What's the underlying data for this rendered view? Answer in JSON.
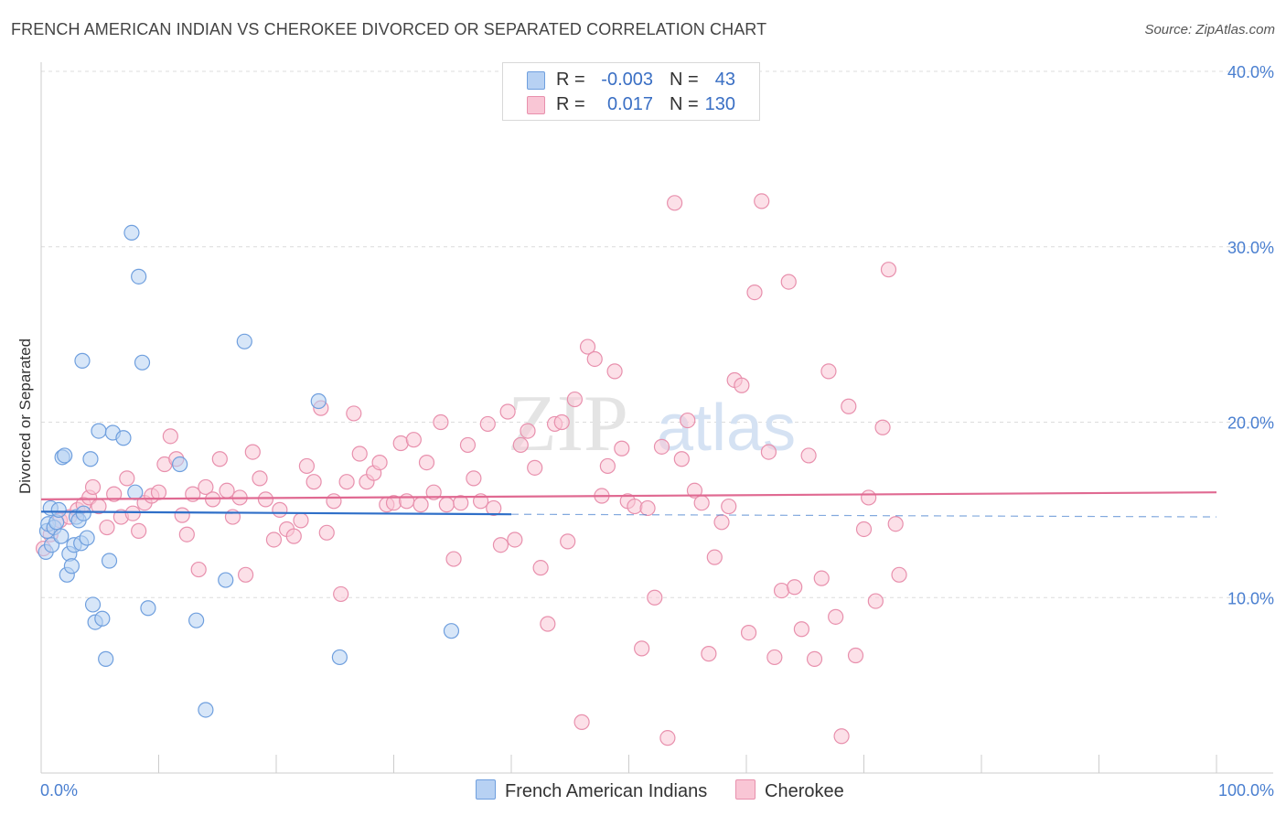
{
  "title": "FRENCH AMERICAN INDIAN VS CHEROKEE DIVORCED OR SEPARATED CORRELATION CHART",
  "source": "Source: ZipAtlas.com",
  "watermark": {
    "zip": "ZIP",
    "atlas": "atlas"
  },
  "legend": {
    "rows": [
      {
        "r_label": "R =",
        "r_value": "-0.003",
        "n_label": "N =",
        "n_value": "43",
        "color": "#a9c8f0"
      },
      {
        "r_label": "R =",
        "r_value": "0.017",
        "n_label": "N =",
        "n_value": "130",
        "color": "#f7b8cc"
      }
    ]
  },
  "colors": {
    "blue_fill": "#b7d1f3",
    "blue_stroke": "#6f9fde",
    "blue_line": "#2f6fc8",
    "pink_fill": "#f9c6d5",
    "pink_stroke": "#e890ad",
    "pink_line": "#e06a92",
    "tick_label": "#4a7fd0"
  },
  "chart_data": {
    "type": "scatter",
    "title": "FRENCH AMERICAN INDIAN VS CHEROKEE DIVORCED OR SEPARATED CORRELATION CHART",
    "xlabel": "",
    "ylabel": "Divorced or Separated",
    "xlim": [
      0,
      100
    ],
    "ylim": [
      0,
      40
    ],
    "x_tick_labels": [
      "0.0%",
      "100.0%"
    ],
    "y_ticks": [
      10,
      20,
      30,
      40
    ],
    "y_tick_labels": [
      "10.0%",
      "20.0%",
      "30.0%",
      "40.0%"
    ],
    "grid": true,
    "legend_position": "top-center",
    "series": [
      {
        "name": "French American Indians",
        "r": -0.003,
        "n": 43,
        "trend": {
          "x": [
            0,
            40
          ],
          "y": [
            14.9,
            14.75
          ],
          "dashed_to": [
            100,
            14.6
          ]
        },
        "points": [
          [
            0.4,
            12.6
          ],
          [
            0.5,
            13.8
          ],
          [
            0.6,
            14.2
          ],
          [
            0.8,
            15.1
          ],
          [
            0.9,
            13.0
          ],
          [
            1.1,
            14.0
          ],
          [
            1.3,
            14.3
          ],
          [
            1.5,
            15.0
          ],
          [
            1.7,
            13.5
          ],
          [
            1.8,
            18.0
          ],
          [
            2.0,
            18.1
          ],
          [
            2.2,
            11.3
          ],
          [
            2.4,
            12.5
          ],
          [
            2.6,
            11.8
          ],
          [
            2.8,
            13.0
          ],
          [
            3.0,
            14.6
          ],
          [
            3.2,
            14.4
          ],
          [
            3.4,
            13.1
          ],
          [
            3.6,
            14.8
          ],
          [
            3.9,
            13.4
          ],
          [
            4.2,
            17.9
          ],
          [
            4.4,
            9.6
          ],
          [
            4.6,
            8.6
          ],
          [
            4.9,
            19.5
          ],
          [
            5.2,
            8.8
          ],
          [
            5.5,
            6.5
          ],
          [
            5.8,
            12.1
          ],
          [
            6.1,
            19.4
          ],
          [
            7.0,
            19.1
          ],
          [
            3.5,
            23.5
          ],
          [
            7.7,
            30.8
          ],
          [
            8.0,
            16.0
          ],
          [
            8.3,
            28.3
          ],
          [
            8.6,
            23.4
          ],
          [
            9.1,
            9.4
          ],
          [
            11.8,
            17.6
          ],
          [
            13.2,
            8.7
          ],
          [
            14.0,
            3.6
          ],
          [
            15.7,
            11.0
          ],
          [
            17.3,
            24.6
          ],
          [
            23.6,
            21.2
          ],
          [
            25.4,
            6.6
          ],
          [
            34.9,
            8.1
          ]
        ]
      },
      {
        "name": "Cherokee",
        "r": 0.017,
        "n": 130,
        "trend": {
          "x": [
            0,
            100
          ],
          "y": [
            15.6,
            16.0
          ]
        },
        "points": [
          [
            0.2,
            12.8
          ],
          [
            0.8,
            13.6
          ],
          [
            1.6,
            14.4
          ],
          [
            2.4,
            14.6
          ],
          [
            3.1,
            15.0
          ],
          [
            3.6,
            15.3
          ],
          [
            4.1,
            15.7
          ],
          [
            4.4,
            16.3
          ],
          [
            4.9,
            15.2
          ],
          [
            5.6,
            14.0
          ],
          [
            6.2,
            15.9
          ],
          [
            6.8,
            14.6
          ],
          [
            7.3,
            16.8
          ],
          [
            7.8,
            14.8
          ],
          [
            8.3,
            13.8
          ],
          [
            8.8,
            15.4
          ],
          [
            9.4,
            15.8
          ],
          [
            10.0,
            16.0
          ],
          [
            10.5,
            17.6
          ],
          [
            11.0,
            19.2
          ],
          [
            11.5,
            17.9
          ],
          [
            12.0,
            14.7
          ],
          [
            12.4,
            13.6
          ],
          [
            12.9,
            15.9
          ],
          [
            13.4,
            11.6
          ],
          [
            14.0,
            16.3
          ],
          [
            14.6,
            15.6
          ],
          [
            15.2,
            17.9
          ],
          [
            15.8,
            16.1
          ],
          [
            16.3,
            14.6
          ],
          [
            16.9,
            15.7
          ],
          [
            17.4,
            11.3
          ],
          [
            18.0,
            18.3
          ],
          [
            18.6,
            16.8
          ],
          [
            19.1,
            15.6
          ],
          [
            19.8,
            13.3
          ],
          [
            20.3,
            15.0
          ],
          [
            20.9,
            13.9
          ],
          [
            21.5,
            13.5
          ],
          [
            22.1,
            14.4
          ],
          [
            22.6,
            17.5
          ],
          [
            23.2,
            16.6
          ],
          [
            23.8,
            20.8
          ],
          [
            24.3,
            13.7
          ],
          [
            24.9,
            15.5
          ],
          [
            25.5,
            10.2
          ],
          [
            26.0,
            16.6
          ],
          [
            26.6,
            20.5
          ],
          [
            27.1,
            18.2
          ],
          [
            27.7,
            16.6
          ],
          [
            28.3,
            17.1
          ],
          [
            28.8,
            17.7
          ],
          [
            29.4,
            15.3
          ],
          [
            30.0,
            15.4
          ],
          [
            30.6,
            18.8
          ],
          [
            31.1,
            15.5
          ],
          [
            31.7,
            19.0
          ],
          [
            32.3,
            15.3
          ],
          [
            32.8,
            17.7
          ],
          [
            33.4,
            16.0
          ],
          [
            34.0,
            20.0
          ],
          [
            34.5,
            15.3
          ],
          [
            35.1,
            12.2
          ],
          [
            35.7,
            15.4
          ],
          [
            36.3,
            18.7
          ],
          [
            36.8,
            16.8
          ],
          [
            37.4,
            15.5
          ],
          [
            38.0,
            19.9
          ],
          [
            38.5,
            15.1
          ],
          [
            39.1,
            13.0
          ],
          [
            39.7,
            20.6
          ],
          [
            40.3,
            13.3
          ],
          [
            40.8,
            18.7
          ],
          [
            41.4,
            19.5
          ],
          [
            42.0,
            17.4
          ],
          [
            42.5,
            11.7
          ],
          [
            43.1,
            8.5
          ],
          [
            43.7,
            19.9
          ],
          [
            44.3,
            20.0
          ],
          [
            44.8,
            13.2
          ],
          [
            45.4,
            21.3
          ],
          [
            46.0,
            2.9
          ],
          [
            46.5,
            24.3
          ],
          [
            47.1,
            23.6
          ],
          [
            47.7,
            15.8
          ],
          [
            48.2,
            17.5
          ],
          [
            48.8,
            22.9
          ],
          [
            49.4,
            18.5
          ],
          [
            49.9,
            15.5
          ],
          [
            50.5,
            15.2
          ],
          [
            51.1,
            7.1
          ],
          [
            51.6,
            15.1
          ],
          [
            52.2,
            10.0
          ],
          [
            52.8,
            18.6
          ],
          [
            53.3,
            2.0
          ],
          [
            53.9,
            32.5
          ],
          [
            54.5,
            17.9
          ],
          [
            55.0,
            20.1
          ],
          [
            55.6,
            16.1
          ],
          [
            56.2,
            15.4
          ],
          [
            56.8,
            6.8
          ],
          [
            57.3,
            12.3
          ],
          [
            57.9,
            14.3
          ],
          [
            58.5,
            15.2
          ],
          [
            59.0,
            22.4
          ],
          [
            59.6,
            22.1
          ],
          [
            60.2,
            8.0
          ],
          [
            60.7,
            27.4
          ],
          [
            61.3,
            32.6
          ],
          [
            61.9,
            18.3
          ],
          [
            62.4,
            6.6
          ],
          [
            63.0,
            10.4
          ],
          [
            63.6,
            28.0
          ],
          [
            64.1,
            10.6
          ],
          [
            64.7,
            8.2
          ],
          [
            65.3,
            18.1
          ],
          [
            65.8,
            6.5
          ],
          [
            66.4,
            11.1
          ],
          [
            67.0,
            22.9
          ],
          [
            67.6,
            8.9
          ],
          [
            68.1,
            2.1
          ],
          [
            68.7,
            20.9
          ],
          [
            69.3,
            6.7
          ],
          [
            70.0,
            13.9
          ],
          [
            70.4,
            15.7
          ],
          [
            71.0,
            9.8
          ],
          [
            71.6,
            19.7
          ],
          [
            72.1,
            28.7
          ],
          [
            72.7,
            14.2
          ],
          [
            73.0,
            11.3
          ]
        ]
      }
    ]
  }
}
